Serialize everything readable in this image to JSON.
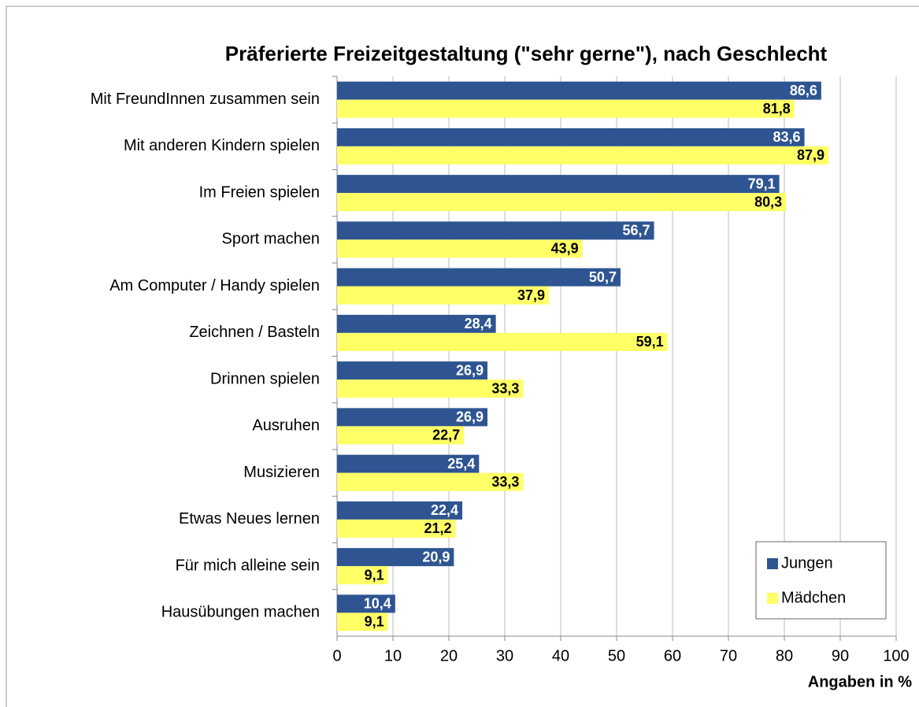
{
  "chart_data": {
    "type": "bar",
    "orientation": "horizontal",
    "title": "Präferierte Freizeitgestaltung (\"sehr gerne\"), nach Geschlecht",
    "categories": [
      "Mit FreundInnen zusammen sein",
      "Mit anderen Kindern spielen",
      "Im Freien spielen",
      "Sport machen",
      "Am Computer / Handy spielen",
      "Zeichnen / Basteln",
      "Drinnen spielen",
      "Ausruhen",
      "Musizieren",
      "Etwas Neues lernen",
      "Für mich alleine sein",
      "Hausübungen machen"
    ],
    "series": [
      {
        "name": "Jungen",
        "color": "#2e5591",
        "values": [
          86.6,
          83.6,
          79.1,
          56.7,
          50.7,
          28.4,
          26.9,
          26.9,
          25.4,
          22.4,
          20.9,
          10.4
        ],
        "value_labels": [
          "86,6",
          "83,6",
          "79,1",
          "56,7",
          "50,7",
          "28,4",
          "26,9",
          "26,9",
          "25,4",
          "22,4",
          "20,9",
          "10,4"
        ]
      },
      {
        "name": "Mädchen",
        "color": "#ffff66",
        "values": [
          81.8,
          87.9,
          80.3,
          43.9,
          37.9,
          59.1,
          33.3,
          22.7,
          33.3,
          21.2,
          9.1,
          9.1
        ],
        "value_labels": [
          "81,8",
          "87,9",
          "80,3",
          "43,9",
          "37,9",
          "59,1",
          "33,3",
          "22,7",
          "33,3",
          "21,2",
          "9,1",
          "9,1"
        ]
      }
    ],
    "xlim": [
      0,
      100
    ],
    "xticks": [
      0,
      10,
      20,
      30,
      40,
      50,
      60,
      70,
      80,
      90,
      100
    ],
    "xlabel": "Angaben in %",
    "grid": true,
    "legend": "lower right"
  }
}
